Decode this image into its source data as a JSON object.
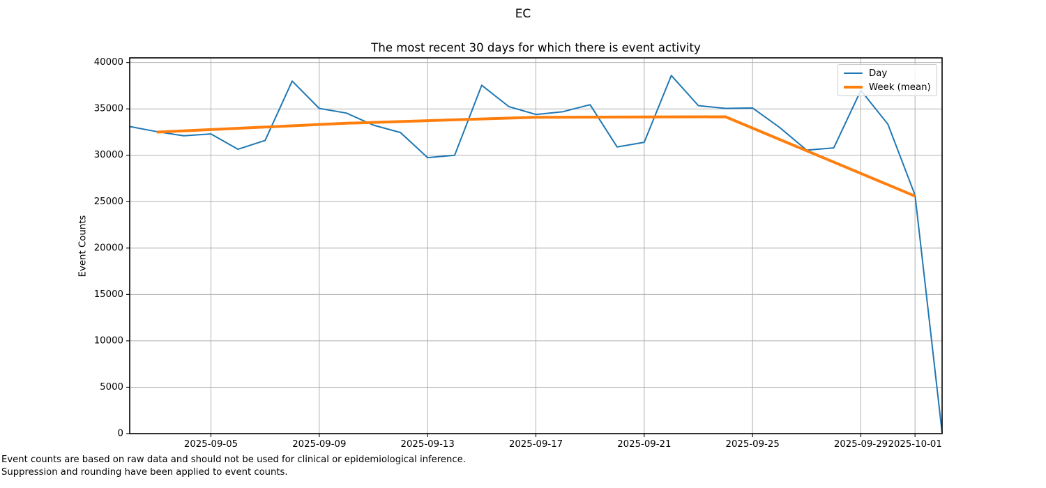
{
  "figure": {
    "title": "EC",
    "footer_lines": [
      "Event counts are based on raw data and should not be used for clinical or epidemiological inference.",
      "Suppression and rounding have been applied to event counts."
    ]
  },
  "chart_data": {
    "type": "line",
    "title": "The most recent 30 days for which there is event activity",
    "xlabel": "",
    "ylabel": "Event Counts",
    "grid": true,
    "legend_position": "upper right",
    "xlim": [
      "2025-09-02",
      "2025-10-02"
    ],
    "ylim": [
      0,
      40500
    ],
    "yticks": [
      0,
      5000,
      10000,
      15000,
      20000,
      25000,
      30000,
      35000,
      40000
    ],
    "xticks": [
      "2025-09-05",
      "2025-09-09",
      "2025-09-13",
      "2025-09-17",
      "2025-09-21",
      "2025-09-25",
      "2025-09-29",
      "2025-10-01"
    ],
    "series": [
      {
        "name": "Day",
        "color": "#1f77b4",
        "line_width": 2,
        "x": [
          "2025-09-02",
          "2025-09-03",
          "2025-09-04",
          "2025-09-05",
          "2025-09-06",
          "2025-09-07",
          "2025-09-08",
          "2025-09-09",
          "2025-09-10",
          "2025-09-11",
          "2025-09-12",
          "2025-09-13",
          "2025-09-14",
          "2025-09-15",
          "2025-09-16",
          "2025-09-17",
          "2025-09-18",
          "2025-09-19",
          "2025-09-20",
          "2025-09-21",
          "2025-09-22",
          "2025-09-23",
          "2025-09-24",
          "2025-09-25",
          "2025-09-26",
          "2025-09-27",
          "2025-09-28",
          "2025-09-29",
          "2025-09-30",
          "2025-10-01",
          "2025-10-02"
        ],
        "values": [
          33100,
          32550,
          32100,
          32300,
          30650,
          31600,
          38000,
          35050,
          34550,
          33250,
          32450,
          29750,
          30000,
          37550,
          35250,
          34400,
          34700,
          35450,
          30900,
          31400,
          38600,
          35350,
          35050,
          35100,
          33000,
          30550,
          30800,
          37000,
          33350,
          25700,
          100
        ]
      },
      {
        "name": "Week (mean)",
        "color": "#ff7f0e",
        "line_width": 4,
        "x": [
          "2025-09-03",
          "2025-09-10",
          "2025-09-17",
          "2025-09-24",
          "2025-10-01"
        ],
        "values": [
          32500,
          33450,
          34100,
          34150,
          25600
        ]
      }
    ]
  }
}
